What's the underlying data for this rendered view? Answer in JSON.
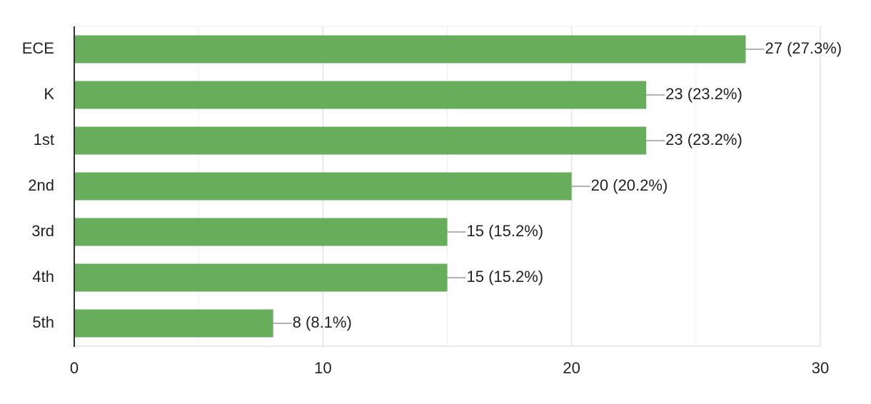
{
  "chart_data": {
    "type": "bar",
    "orientation": "horizontal",
    "categories": [
      "ECE",
      "K",
      "1st",
      "2nd",
      "3rd",
      "4th",
      "5th"
    ],
    "values": [
      27,
      23,
      23,
      20,
      15,
      15,
      8
    ],
    "value_labels": [
      "27 (27.3%)",
      "23 (23.2%)",
      "23 (23.2%)",
      "20 (20.2%)",
      "15 (15.2%)",
      "15 (15.2%)",
      "8 (8.1%)"
    ],
    "color": "#67ad5b",
    "xlim": [
      0,
      30
    ],
    "xticks": [
      0,
      10,
      20,
      30
    ],
    "minor_xticks": [
      5,
      15,
      25
    ],
    "grid": true
  }
}
